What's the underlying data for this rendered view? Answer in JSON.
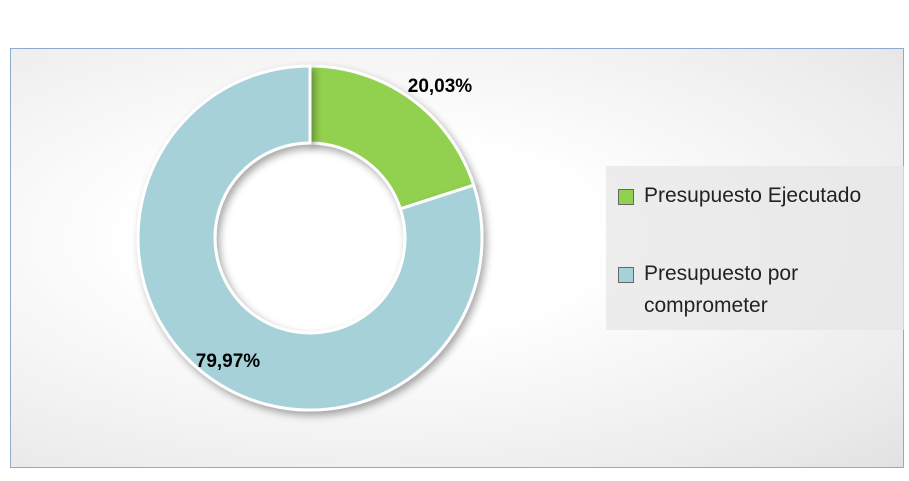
{
  "chart_data": {
    "type": "donut",
    "categories": [
      "Presupuesto Ejecutado",
      "Presupuesto por comprometer"
    ],
    "values": [
      20.03,
      79.97
    ],
    "value_labels": [
      "20,03%",
      "79,97%"
    ],
    "colors": [
      "#92d050",
      "#a6d1d9"
    ],
    "legend": "right"
  }
}
